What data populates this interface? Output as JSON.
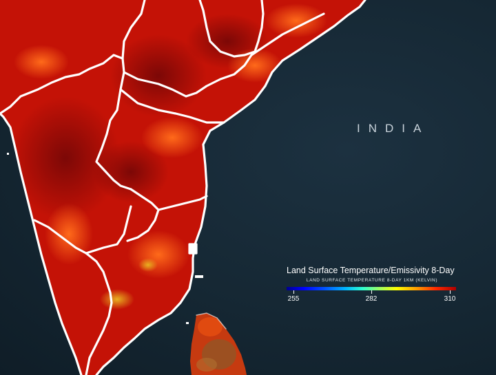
{
  "map": {
    "country_label": "INDIA",
    "region_shown": "Southern India and Sri Lanka",
    "colors": {
      "ocean": "#152733",
      "land_hot": "#c81000",
      "land_very_hot": "#8c0a06",
      "land_warm": "#ff4a10",
      "boundary": "#ffffff"
    }
  },
  "legend": {
    "title": "Land Surface Temperature/Emissivity 8-Day",
    "subtitle": "land surface temperature 8-day 1km (Kelvin)",
    "min_label": "255",
    "mid_label": "282",
    "max_label": "310",
    "scale_min": 255,
    "scale_mid": 282,
    "scale_max": 310
  }
}
